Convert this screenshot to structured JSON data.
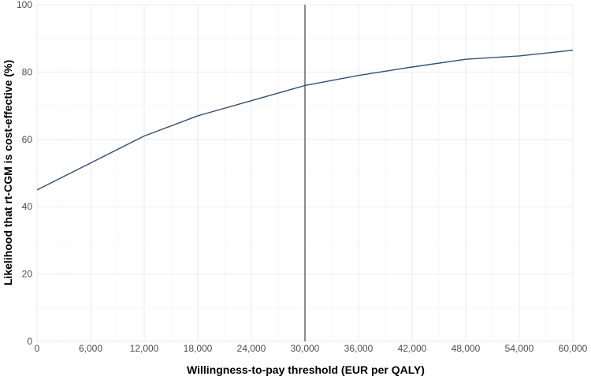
{
  "chart_data": {
    "type": "line",
    "title": "",
    "xlabel": "Willingness-to-pay threshold (EUR per QALY)",
    "ylabel": "Likelihood that rt-CGM is cost-effective (%)",
    "xlim": [
      0,
      60000
    ],
    "ylim": [
      0,
      100
    ],
    "x_ticks": [
      0,
      6000,
      12000,
      18000,
      24000,
      30000,
      36000,
      42000,
      48000,
      54000,
      60000
    ],
    "x_tick_labels": [
      "0",
      "6,000",
      "12,000",
      "18,000",
      "24,000",
      "30,000",
      "36,000",
      "42,000",
      "48,000",
      "54,000",
      "60,000"
    ],
    "y_ticks": [
      0,
      20,
      40,
      60,
      80,
      100
    ],
    "y_tick_labels": [
      "0",
      "20",
      "40",
      "60",
      "80",
      "100"
    ],
    "grid": true,
    "series": [
      {
        "x": [
          0,
          6000,
          12000,
          18000,
          24000,
          30000,
          36000,
          42000,
          48000,
          54000,
          60000
        ],
        "values": [
          45,
          53,
          61,
          67,
          71.5,
          76,
          79,
          81.5,
          83.8,
          84.8,
          86.5
        ]
      }
    ],
    "reference_line_x": 30000,
    "colors": {
      "line": "#34506e",
      "reference": "#1a1a2e"
    }
  }
}
